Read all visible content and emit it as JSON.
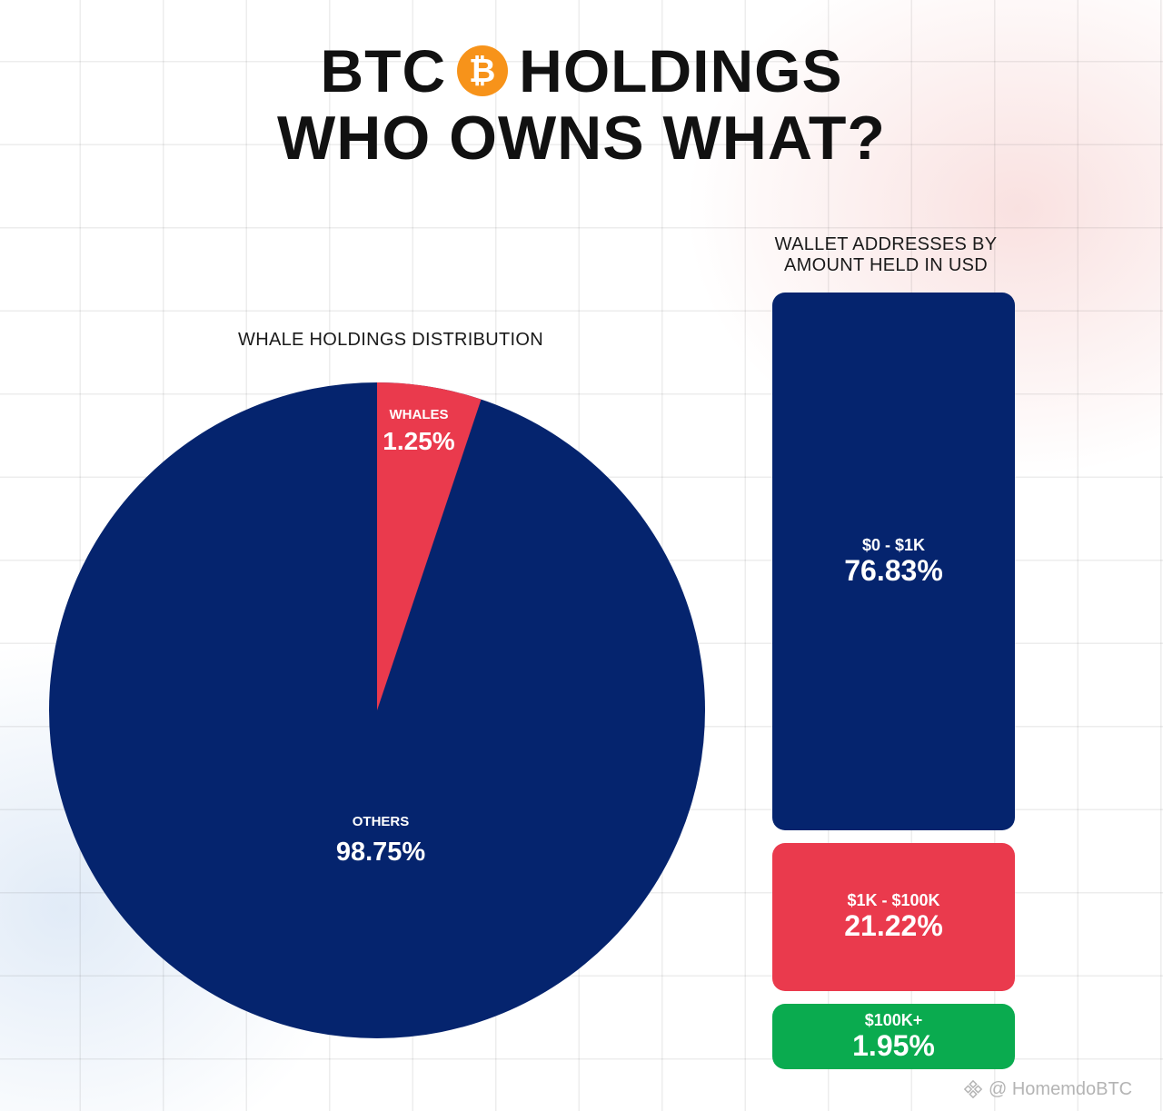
{
  "header": {
    "title_line1_left": "BTC",
    "btc_symbol": "₿",
    "title_line1_right": "HOLDINGS",
    "title_line2": "WHO OWNS WHAT?"
  },
  "colors": {
    "navy": "#05246e",
    "red": "#ea3a4d",
    "green": "#0aab4f",
    "btc_orange": "#f7931a"
  },
  "chart_data": [
    {
      "type": "pie",
      "title": "WHALE HOLDINGS DISTRIBUTION",
      "slices": [
        {
          "label": "WHALES",
          "value": 1.25,
          "display": "1.25%",
          "color": "#ea3a4d"
        },
        {
          "label": "OTHERS",
          "value": 98.75,
          "display": "98.75%",
          "color": "#05246e"
        }
      ]
    },
    {
      "type": "bar",
      "orientation": "stacked-vertical",
      "title": "WALLET ADDRESSES BY AMOUNT HELD IN USD",
      "title_lines": [
        "WALLET ADDRESSES BY",
        "AMOUNT HELD IN USD"
      ],
      "categories": [
        "$0 - $1K",
        "$1K - $100K",
        "$100K+"
      ],
      "values": [
        76.83,
        21.22,
        1.95
      ],
      "displays": [
        "76.83%",
        "21.22%",
        "1.95%"
      ],
      "colors": [
        "#05246e",
        "#ea3a4d",
        "#0aab4f"
      ]
    }
  ],
  "watermark": {
    "text": "@ HomemdoBTC",
    "icon": "binance-square-icon"
  }
}
